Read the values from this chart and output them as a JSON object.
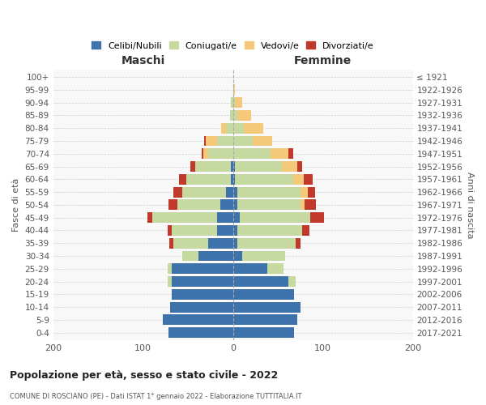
{
  "age_groups": [
    "0-4",
    "5-9",
    "10-14",
    "15-19",
    "20-24",
    "25-29",
    "30-34",
    "35-39",
    "40-44",
    "45-49",
    "50-54",
    "55-59",
    "60-64",
    "65-69",
    "70-74",
    "75-79",
    "80-84",
    "85-89",
    "90-94",
    "95-99",
    "100+"
  ],
  "birth_years": [
    "2017-2021",
    "2012-2016",
    "2007-2011",
    "2002-2006",
    "1997-2001",
    "1992-1996",
    "1987-1991",
    "1982-1986",
    "1977-1981",
    "1972-1976",
    "1967-1971",
    "1962-1966",
    "1957-1961",
    "1952-1956",
    "1947-1951",
    "1942-1946",
    "1937-1941",
    "1932-1936",
    "1927-1931",
    "1922-1926",
    "≤ 1921"
  ],
  "maschi": {
    "celibi": [
      72,
      78,
      70,
      68,
      68,
      68,
      38,
      28,
      18,
      18,
      14,
      8,
      2,
      2,
      0,
      0,
      0,
      0,
      0,
      0,
      0
    ],
    "coniugati": [
      0,
      0,
      0,
      0,
      5,
      5,
      18,
      38,
      50,
      72,
      48,
      48,
      50,
      40,
      28,
      18,
      8,
      3,
      2,
      0,
      0
    ],
    "vedovi": [
      0,
      0,
      0,
      0,
      0,
      0,
      0,
      0,
      0,
      0,
      0,
      0,
      0,
      0,
      5,
      12,
      5,
      0,
      0,
      0,
      0
    ],
    "divorziati": [
      0,
      0,
      0,
      0,
      0,
      0,
      0,
      5,
      5,
      5,
      10,
      10,
      8,
      5,
      2,
      2,
      0,
      0,
      0,
      0,
      0
    ]
  },
  "femmine": {
    "nubili": [
      68,
      72,
      75,
      68,
      62,
      38,
      10,
      5,
      5,
      8,
      5,
      5,
      2,
      2,
      0,
      0,
      0,
      0,
      0,
      0,
      0
    ],
    "coniugate": [
      0,
      0,
      0,
      0,
      8,
      18,
      48,
      65,
      72,
      78,
      70,
      70,
      65,
      52,
      42,
      22,
      12,
      5,
      2,
      0,
      0
    ],
    "vedove": [
      0,
      0,
      0,
      0,
      0,
      0,
      0,
      0,
      0,
      0,
      5,
      8,
      12,
      18,
      20,
      22,
      22,
      15,
      8,
      2,
      0
    ],
    "divorziate": [
      0,
      0,
      0,
      0,
      0,
      0,
      0,
      5,
      8,
      15,
      12,
      8,
      10,
      5,
      5,
      0,
      0,
      0,
      0,
      0,
      0
    ]
  },
  "color_celibi": "#3d72aa",
  "color_coniugati": "#c5d9a0",
  "color_vedovi": "#f5c97a",
  "color_divorziati": "#c0392b",
  "xlim": 200,
  "title": "Popolazione per età, sesso e stato civile - 2022",
  "subtitle": "COMUNE DI ROSCIANO (PE) - Dati ISTAT 1° gennaio 2022 - Elaborazione TUTTITALIA.IT",
  "ylabel_left": "Fasce di età",
  "ylabel_right": "Anni di nascita",
  "xlabel_left": "Maschi",
  "xlabel_right": "Femmine"
}
